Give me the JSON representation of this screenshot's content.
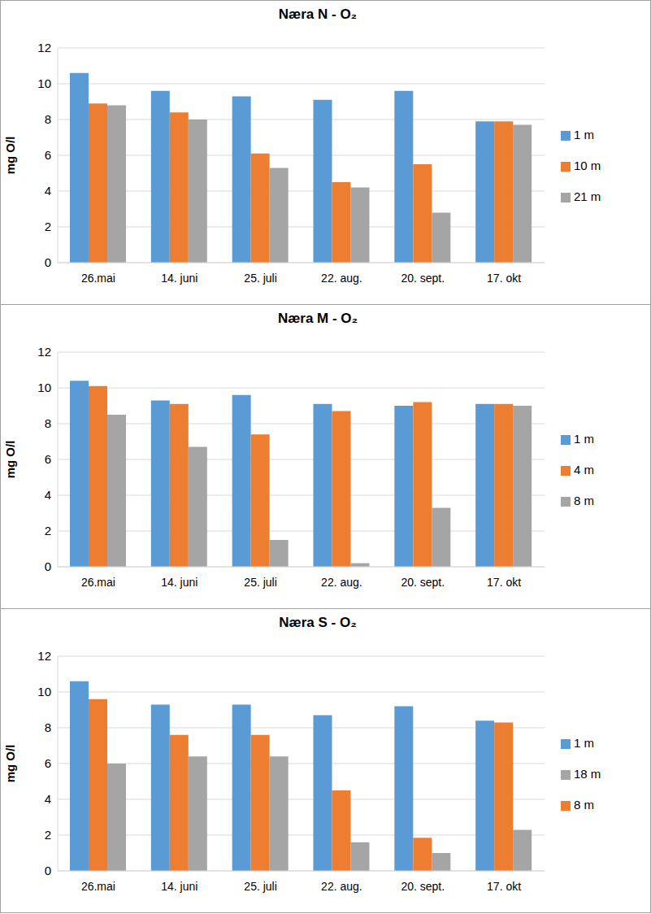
{
  "chart_data": [
    {
      "type": "bar",
      "title": "Næra N - O₂",
      "y_label": "mg O/l",
      "categories": [
        "26.mai",
        "14. juni",
        "25. juli",
        "22. aug.",
        "20. sept.",
        "17. okt"
      ],
      "series": [
        {
          "name": "1 m",
          "color": "#5b9bd5",
          "values": [
            10.6,
            9.6,
            9.3,
            9.1,
            9.6,
            7.9
          ]
        },
        {
          "name": "10 m",
          "color": "#ed7d31",
          "values": [
            8.9,
            8.4,
            6.1,
            4.5,
            5.5,
            7.9
          ]
        },
        {
          "name": "21 m",
          "color": "#a5a5a5",
          "values": [
            8.8,
            8.0,
            5.3,
            4.2,
            2.8,
            7.7
          ]
        }
      ],
      "ylim": [
        0,
        12
      ],
      "yticks": [
        0,
        2,
        4,
        6,
        8,
        10,
        12
      ],
      "grid": true,
      "legend": "right"
    },
    {
      "type": "bar",
      "title": "Næra M - O₂",
      "y_label": "mg O/l",
      "categories": [
        "26.mai",
        "14. juni",
        "25. juli",
        "22. aug.",
        "20. sept.",
        "17. okt"
      ],
      "series": [
        {
          "name": "1 m",
          "color": "#5b9bd5",
          "values": [
            10.4,
            9.3,
            9.6,
            9.1,
            9.0,
            9.1
          ]
        },
        {
          "name": "4 m",
          "color": "#ed7d31",
          "values": [
            10.1,
            9.1,
            7.4,
            8.7,
            9.2,
            9.1
          ]
        },
        {
          "name": "8 m",
          "color": "#a5a5a5",
          "values": [
            8.5,
            6.7,
            1.5,
            0.2,
            3.3,
            9.0
          ]
        }
      ],
      "ylim": [
        0,
        12
      ],
      "yticks": [
        0,
        2,
        4,
        6,
        8,
        10,
        12
      ],
      "grid": true,
      "legend": "right"
    },
    {
      "type": "bar",
      "title": "Næra S - O₂",
      "y_label": "mg O/l",
      "categories": [
        "26.mai",
        "14. juni",
        "25. juli",
        "22. aug.",
        "20. sept.",
        "17. okt"
      ],
      "series": [
        {
          "name": "1 m",
          "color": "#5b9bd5",
          "values": [
            10.6,
            9.3,
            9.3,
            8.7,
            9.2,
            8.4
          ]
        },
        {
          "name": "8 m",
          "color": "#ed7d31",
          "values": [
            9.6,
            7.6,
            7.6,
            4.5,
            1.85,
            8.3
          ]
        },
        {
          "name": "18 m",
          "color": "#a5a5a5",
          "values": [
            6.0,
            6.4,
            6.4,
            1.6,
            1.0,
            2.3
          ]
        }
      ],
      "ylim": [
        0,
        12
      ],
      "yticks": [
        0,
        2,
        4,
        6,
        8,
        10,
        12
      ],
      "grid": true,
      "legend": "right"
    }
  ]
}
